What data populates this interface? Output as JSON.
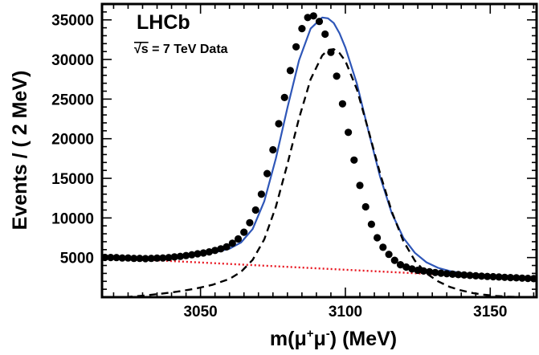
{
  "chart_data": {
    "type": "scatter",
    "xlabel_parts": [
      "m(",
      "μ",
      "+",
      "μ",
      "-",
      ") (MeV)"
    ],
    "ylabel": "Events / ( 2 MeV)",
    "annotations": {
      "experiment": "LHCb",
      "sqrt_symbol": "√s",
      "energy": " = 7 TeV Data"
    },
    "xlim": [
      3016,
      3166
    ],
    "ylim": [
      0,
      37000
    ],
    "x_ticks": [
      3050,
      3100,
      3150
    ],
    "y_ticks": [
      5000,
      10000,
      15000,
      20000,
      25000,
      30000,
      35000
    ],
    "x_tick_labels": [
      "3050",
      "3100",
      "3150"
    ],
    "y_tick_labels": [
      "5000",
      "10000",
      "15000",
      "20000",
      "25000",
      "30000",
      "35000"
    ],
    "series": [
      {
        "kind": "points",
        "color": "#000000",
        "x": [
          3017,
          3019,
          3021,
          3023,
          3025,
          3027,
          3029,
          3031,
          3033,
          3035,
          3037,
          3039,
          3041,
          3043,
          3045,
          3047,
          3049,
          3051,
          3053,
          3055,
          3057,
          3059,
          3061,
          3063,
          3065,
          3067,
          3069,
          3071,
          3073,
          3075,
          3077,
          3079,
          3081,
          3083,
          3085,
          3087,
          3089,
          3091,
          3093,
          3095,
          3097,
          3099,
          3101,
          3103,
          3105,
          3107,
          3109,
          3111,
          3113,
          3115,
          3117,
          3119,
          3121,
          3123,
          3125,
          3127,
          3129,
          3131,
          3133,
          3135,
          3137,
          3139,
          3141,
          3143,
          3145,
          3147,
          3149,
          3151,
          3153,
          3155,
          3157,
          3159,
          3161,
          3163,
          3165
        ],
        "y": [
          5020,
          5010,
          5000,
          4950,
          4950,
          4900,
          4900,
          4870,
          4900,
          4930,
          4950,
          5000,
          5080,
          5150,
          5250,
          5350,
          5470,
          5580,
          5720,
          5900,
          6100,
          6350,
          6800,
          7350,
          8200,
          9400,
          11000,
          13000,
          15600,
          18600,
          21900,
          25200,
          28600,
          31600,
          33900,
          35300,
          35500,
          34800,
          33200,
          30900,
          27900,
          24400,
          20800,
          17300,
          14100,
          11400,
          9200,
          7500,
          6300,
          5400,
          4650,
          4100,
          3800,
          3560,
          3400,
          3300,
          3200,
          3110,
          3030,
          2960,
          2900,
          2850,
          2800,
          2750,
          2700,
          2660,
          2620,
          2580,
          2540,
          2500,
          2470,
          2440,
          2400,
          2370,
          2340
        ]
      },
      {
        "kind": "curve",
        "color": "#2e56b8",
        "style": "solid",
        "x": [
          3016,
          3020,
          3024,
          3028,
          3032,
          3036,
          3040,
          3044,
          3048,
          3052,
          3056,
          3060,
          3064,
          3068,
          3072,
          3076,
          3080,
          3084,
          3088,
          3092,
          3094,
          3096,
          3098,
          3100,
          3104,
          3108,
          3112,
          3116,
          3120,
          3124,
          3128,
          3132,
          3136,
          3140,
          3144,
          3148,
          3152,
          3156,
          3160,
          3166
        ],
        "y": [
          5010,
          4970,
          4920,
          4890,
          4870,
          4900,
          4970,
          5080,
          5250,
          5480,
          5760,
          6120,
          6900,
          8600,
          12100,
          17500,
          23900,
          29900,
          33900,
          35300,
          35200,
          34600,
          33300,
          31500,
          26900,
          20900,
          15200,
          10600,
          7500,
          5600,
          4400,
          3700,
          3300,
          3050,
          2870,
          2730,
          2600,
          2490,
          2400,
          2280
        ]
      },
      {
        "kind": "curve",
        "color": "#000000",
        "style": "dashed",
        "x": [
          3024,
          3030,
          3036,
          3042,
          3048,
          3054,
          3060,
          3064,
          3068,
          3072,
          3076,
          3080,
          3084,
          3088,
          3092,
          3094,
          3096,
          3098,
          3100,
          3104,
          3108,
          3112,
          3116,
          3120,
          3124,
          3128,
          3132,
          3136,
          3140,
          3144,
          3148,
          3152,
          3156,
          3160,
          3164
        ],
        "y": [
          0,
          180,
          420,
          700,
          1050,
          1550,
          2300,
          3200,
          4700,
          7300,
          11400,
          16800,
          22600,
          27500,
          30500,
          31200,
          31300,
          30800,
          29800,
          26200,
          21000,
          15600,
          10800,
          7100,
          4600,
          3000,
          2000,
          1300,
          850,
          520,
          300,
          160,
          70,
          20,
          0
        ]
      },
      {
        "kind": "curve",
        "color": "#e8141e",
        "style": "dotted",
        "x": [
          3016,
          3166
        ],
        "y": [
          5000,
          2250
        ]
      }
    ]
  }
}
